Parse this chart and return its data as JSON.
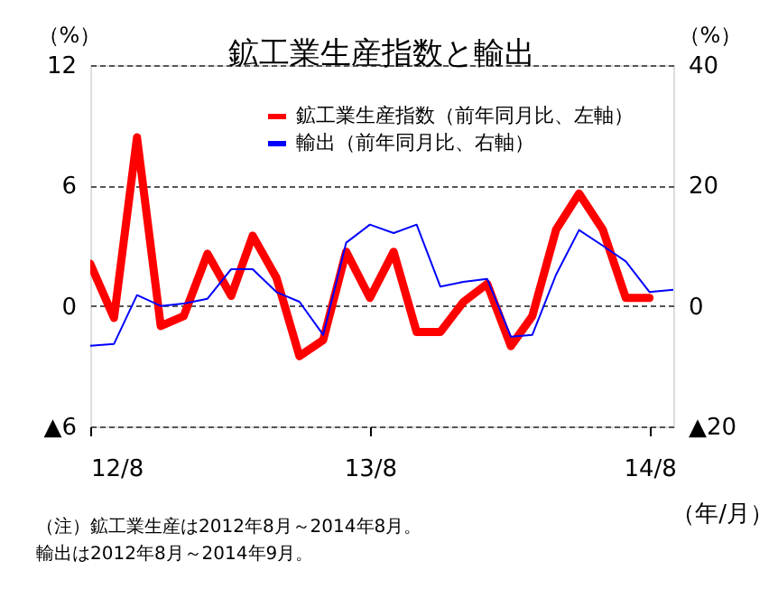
{
  "chart_data": {
    "type": "line",
    "title": "鉱工業生産指数と輸出",
    "ylabel": "（%）",
    "y2label": "（%）",
    "xlabel": "（年/月）",
    "x": [
      "2012-08",
      "2012-09",
      "2012-10",
      "2012-11",
      "2012-12",
      "2013-01",
      "2013-02",
      "2013-03",
      "2013-04",
      "2013-05",
      "2013-06",
      "2013-07",
      "2013-08",
      "2013-09",
      "2013-10",
      "2013-11",
      "2013-12",
      "2014-01",
      "2014-02",
      "2014-03",
      "2014-04",
      "2014-05",
      "2014-06",
      "2014-07",
      "2014-08",
      "2014-09"
    ],
    "series": [
      {
        "name": "鉱工業生産指数（前年同月比、左軸）",
        "color": "#ff0000",
        "values": [
          2.1,
          -0.6,
          8.4,
          -1.0,
          -0.5,
          2.6,
          0.5,
          3.5,
          1.4,
          -2.5,
          -1.7,
          2.7,
          0.4,
          2.7,
          -1.3,
          -1.3,
          0.2,
          1.1,
          -2.0,
          -0.5,
          3.8,
          5.6,
          3.8,
          0.4,
          0.4,
          null
        ]
      },
      {
        "name": "輸出（前年同月比、右軸）",
        "color": "#0000ff",
        "axis": "y2",
        "values": [
          -6.6,
          -6.3,
          1.8,
          0,
          0.4,
          1.2,
          6.1,
          6.1,
          2.3,
          0.7,
          -4.8,
          10.5,
          13.5,
          12.1,
          13.5,
          3.2,
          4.0,
          4.5,
          -5.1,
          -4.8,
          5.2,
          12.6,
          10.0,
          7.4,
          2.3,
          2.7
        ]
      }
    ],
    "xlim": [
      "2012-08",
      "2014-09"
    ],
    "xticks": [
      {
        "value": "2012-08",
        "label": "12/8"
      },
      {
        "value": "2013-08",
        "label": "13/8"
      },
      {
        "value": "2014-08",
        "label": "14/8"
      }
    ],
    "ylim": [
      -6,
      12
    ],
    "yticks": [
      {
        "value": -6,
        "label": "▲6"
      },
      0,
      6,
      12
    ],
    "y2lim": [
      -20,
      40
    ],
    "y2ticks": [
      {
        "value": -20,
        "label": "▲20"
      },
      0,
      20,
      40
    ],
    "grid": "y",
    "legend": "top right",
    "annotations": [
      "（注）鉱工業生産は2012年8月～2014年8月。",
      "　　　輸出は2012年8月～2014年9月。"
    ]
  }
}
